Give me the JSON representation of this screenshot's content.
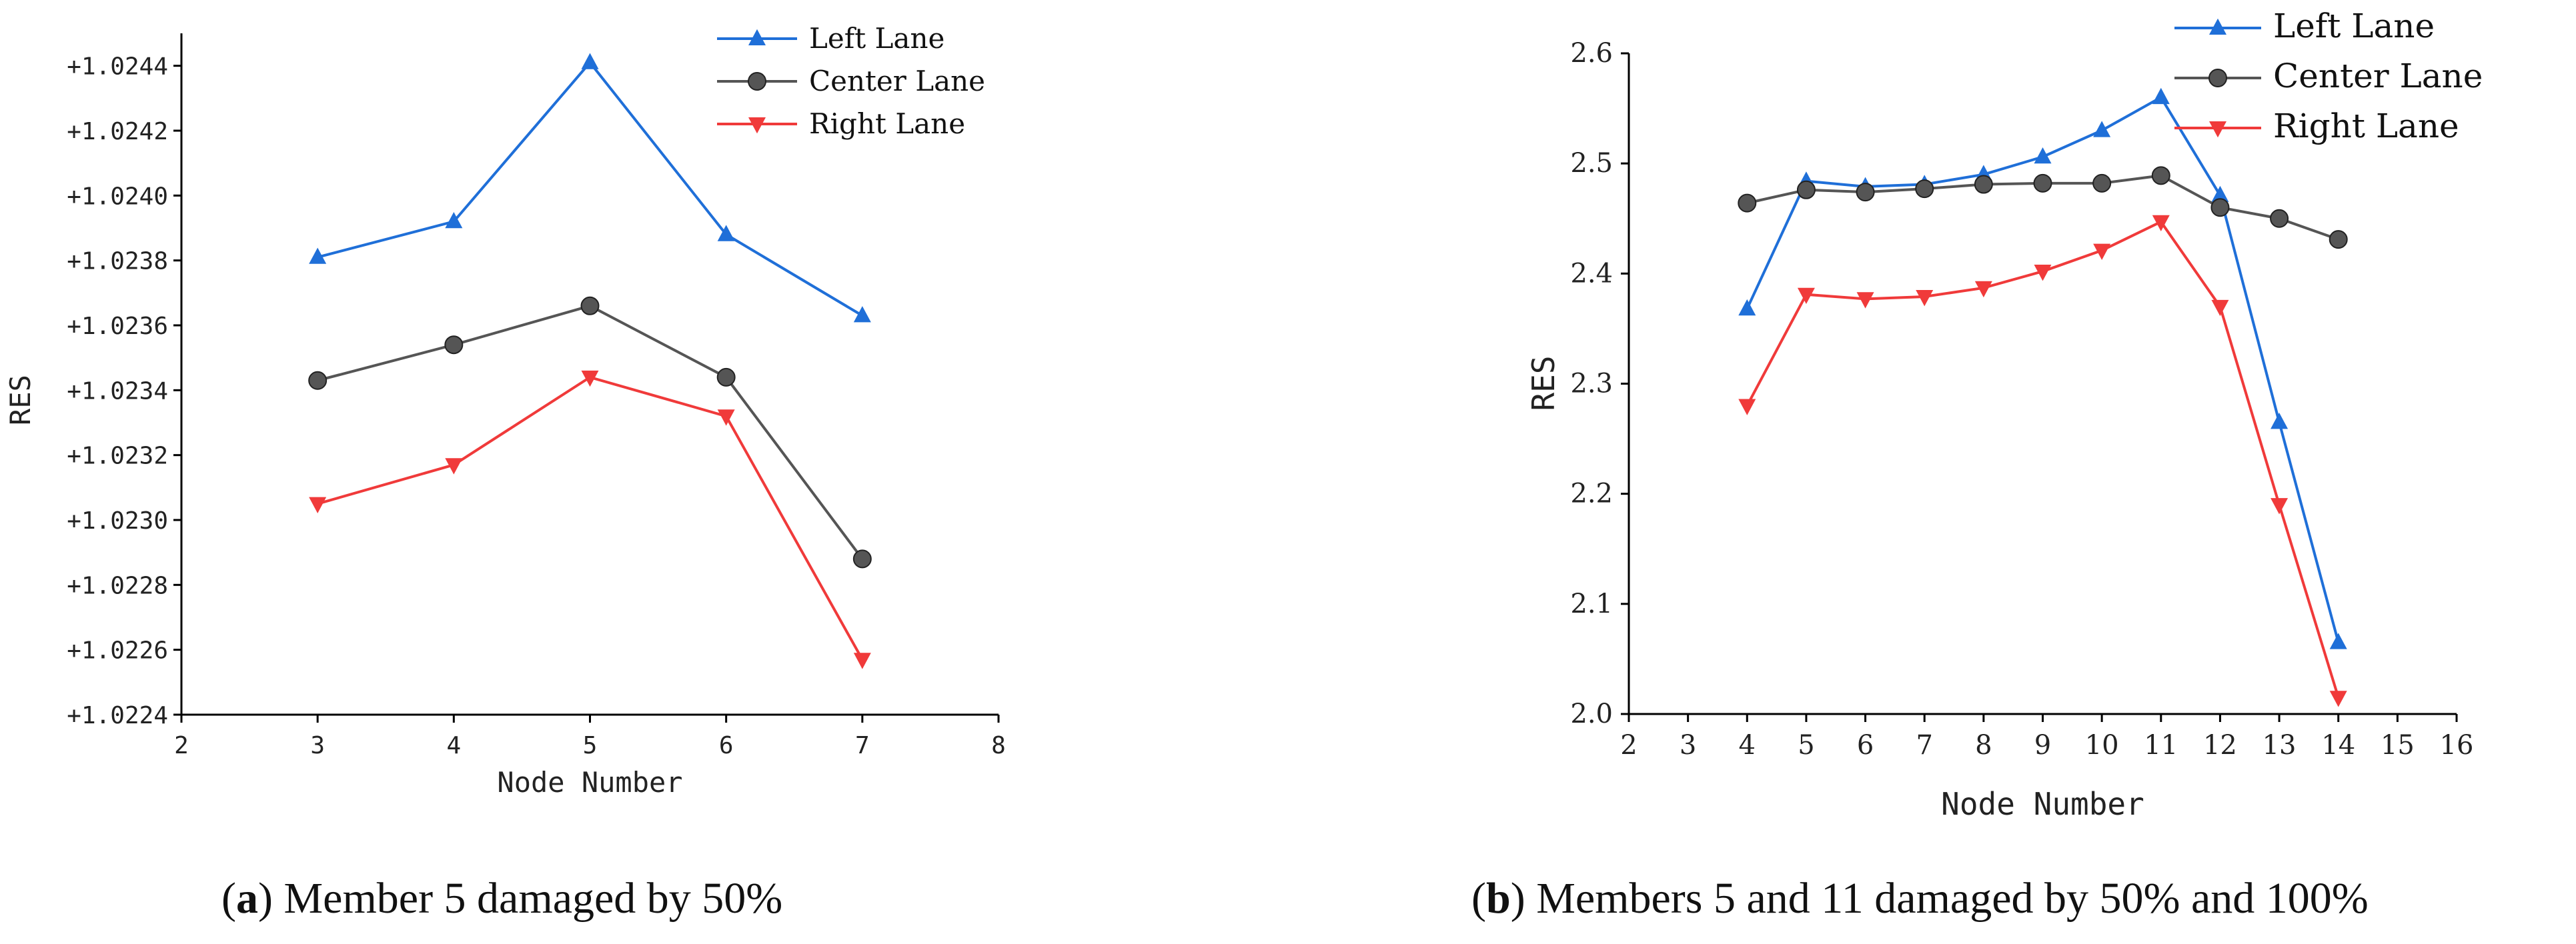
{
  "chart_data": [
    {
      "type": "line",
      "title": "",
      "xlabel": "Node Number",
      "ylabel": "RES",
      "xlim": [
        2,
        8
      ],
      "ylim": [
        1.0224,
        1.0245
      ],
      "x_ticks": [
        2,
        3,
        4,
        5,
        6,
        7,
        8
      ],
      "y_ticks": [
        1.0224,
        1.0226,
        1.0228,
        1.023,
        1.0232,
        1.0234,
        1.0236,
        1.0238,
        1.024,
        1.0242,
        1.0244
      ],
      "y_tick_labels": [
        "+1.0224",
        "+1.0226",
        "+1.0228",
        "+1.0230",
        "+1.0232",
        "+1.0234",
        "+1.0236",
        "+1.0238",
        "+1.0240",
        "+1.0242",
        "+1.0244"
      ],
      "x": [
        3,
        4,
        5,
        6,
        7
      ],
      "series": [
        {
          "name": "Left Lane",
          "color": "#1f6fd8",
          "marker": "triangle-up",
          "values": [
            1.02381,
            1.02392,
            1.02441,
            1.02388,
            1.02363
          ]
        },
        {
          "name": "Center Lane",
          "color": "#555555",
          "marker": "circle",
          "values": [
            1.02343,
            1.02354,
            1.02366,
            1.02344,
            1.02288
          ]
        },
        {
          "name": "Right Lane",
          "color": "#f03a3a",
          "marker": "triangle-down",
          "values": [
            1.02305,
            1.02317,
            1.02344,
            1.02332,
            1.02257
          ]
        }
      ],
      "legend": "top-right",
      "caption_label": "a",
      "caption_text": "Member 5 damaged by 50%"
    },
    {
      "type": "line",
      "title": "",
      "xlabel": "Node Number",
      "ylabel": "RES",
      "xlim": [
        2,
        16
      ],
      "ylim": [
        2.0,
        2.6
      ],
      "x_ticks": [
        2,
        3,
        4,
        5,
        6,
        7,
        8,
        9,
        10,
        11,
        12,
        13,
        14,
        15,
        16
      ],
      "y_ticks": [
        2.0,
        2.1,
        2.2,
        2.3,
        2.4,
        2.5,
        2.6
      ],
      "y_tick_labels": [
        "2.0",
        "2.1",
        "2.2",
        "2.3",
        "2.4",
        "2.5",
        "2.6"
      ],
      "x": [
        4,
        5,
        6,
        7,
        8,
        9,
        10,
        11,
        12,
        13,
        14
      ],
      "series": [
        {
          "name": "Left Lane",
          "color": "#1f6fd8",
          "marker": "triangle-up",
          "values": [
            2.368,
            2.484,
            2.479,
            2.481,
            2.49,
            2.506,
            2.53,
            2.56,
            2.471,
            2.265,
            2.065
          ]
        },
        {
          "name": "Center Lane",
          "color": "#555555",
          "marker": "circle",
          "values": [
            2.464,
            2.476,
            2.474,
            2.477,
            2.481,
            2.482,
            2.482,
            2.489,
            2.46,
            2.45,
            2.431
          ]
        },
        {
          "name": "Right Lane",
          "color": "#f03a3a",
          "marker": "triangle-down",
          "values": [
            2.28,
            2.381,
            2.377,
            2.379,
            2.387,
            2.402,
            2.421,
            2.447,
            2.37,
            2.19,
            2.015
          ]
        }
      ],
      "legend": "top-right",
      "caption_label": "b",
      "caption_text": "Members 5 and 11 damaged by 50% and 100%"
    }
  ]
}
